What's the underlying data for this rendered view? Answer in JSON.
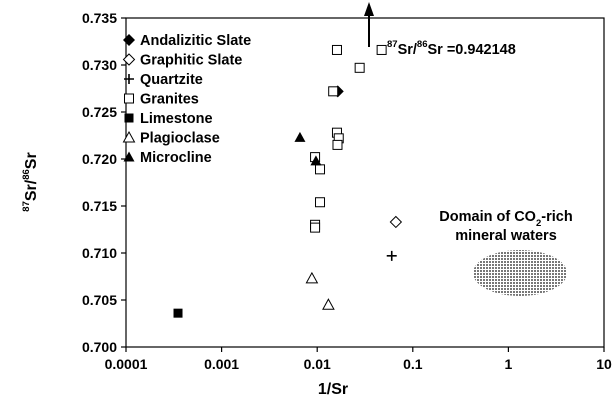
{
  "chart_data": {
    "type": "scatter",
    "title": "",
    "xlabel": "1/Sr",
    "ylabel": {
      "pre": "87",
      "mid": "Sr/",
      "sup": "86",
      "post": "Sr"
    },
    "x_scale": "log",
    "xlim": [
      0.0001,
      10
    ],
    "ylim": [
      0.7,
      0.735
    ],
    "x_ticks": [
      "0.0001",
      "0.001",
      "0.01",
      "0.1",
      "1",
      "10"
    ],
    "y_ticks": [
      "0.700",
      "0.705",
      "0.710",
      "0.715",
      "0.720",
      "0.725",
      "0.730",
      "0.735"
    ],
    "grid": false,
    "legend_position": "top-left",
    "series": [
      {
        "name": "Andalizitic Slate",
        "marker": "diamond-filled",
        "points": [
          {
            "x": 0.0164,
            "y": 0.7272
          }
        ]
      },
      {
        "name": "Graphitic Slate",
        "marker": "diamond-open",
        "points": [
          {
            "x": 0.0665,
            "y": 0.7133
          }
        ]
      },
      {
        "name": "Quartzite",
        "marker": "plus",
        "points": [
          {
            "x": 0.0602,
            "y": 0.7097
          }
        ]
      },
      {
        "name": "Granites",
        "marker": "square-open",
        "points": [
          {
            "x": 0.0161,
            "y": 0.7316
          },
          {
            "x": 0.0472,
            "y": 0.7316
          },
          {
            "x": 0.0278,
            "y": 0.7297
          },
          {
            "x": 0.0147,
            "y": 0.7272
          },
          {
            "x": 0.0161,
            "y": 0.7228
          },
          {
            "x": 0.0168,
            "y": 0.7222
          },
          {
            "x": 0.0163,
            "y": 0.7215
          },
          {
            "x": 0.0095,
            "y": 0.7202
          },
          {
            "x": 0.0107,
            "y": 0.7189
          },
          {
            "x": 0.0107,
            "y": 0.7154
          },
          {
            "x": 0.0095,
            "y": 0.713
          },
          {
            "x": 0.0095,
            "y": 0.7127
          }
        ]
      },
      {
        "name": "Limestone",
        "marker": "square-filled",
        "points": [
          {
            "x": 0.00035,
            "y": 0.7036
          }
        ]
      },
      {
        "name": "Plagioclase",
        "marker": "triangle-open",
        "points": [
          {
            "x": 0.0088,
            "y": 0.7073
          },
          {
            "x": 0.0131,
            "y": 0.7045
          }
        ]
      },
      {
        "name": "Microcline",
        "marker": "triangle-filled",
        "points": [
          {
            "x": 0.0066,
            "y": 0.7223
          },
          {
            "x": 0.0097,
            "y": 0.7198
          }
        ]
      }
    ],
    "annotations": {
      "arrow_label": {
        "pre": "87",
        "mid": "Sr/",
        "sup": "86",
        "post": "Sr =0.942148"
      },
      "domain_line1_pre": "Domain of CO",
      "domain_line1_sub": "2",
      "domain_line1_post": "-rich",
      "domain_line2": "mineral waters",
      "domain_fill": "#b8b8b8"
    }
  }
}
